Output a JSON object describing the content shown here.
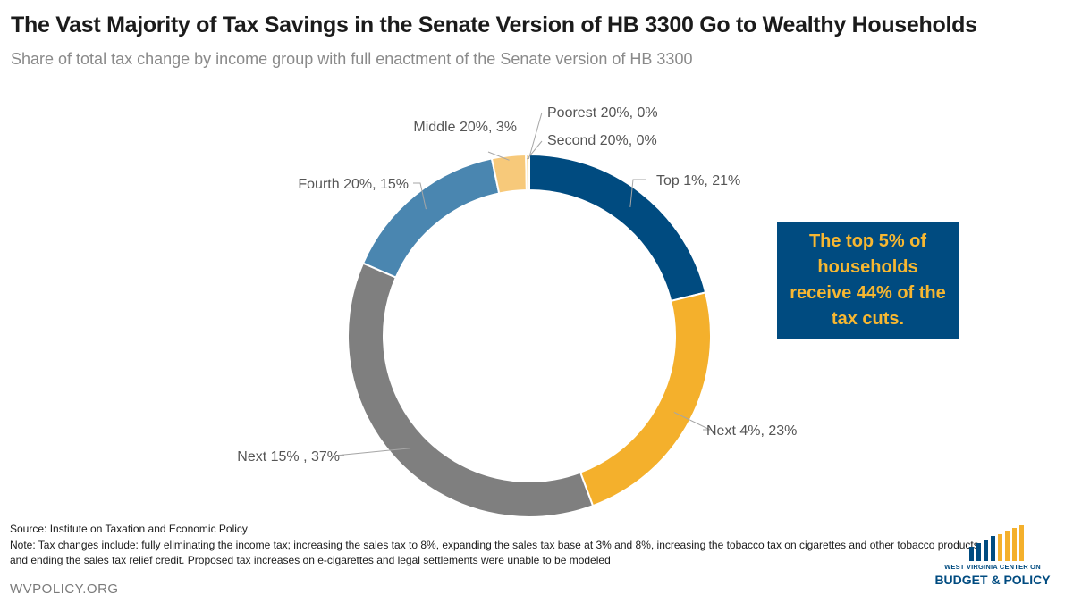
{
  "title": "The Vast Majority of Tax Savings in the Senate Version of HB 3300 Go to Wealthy Households",
  "subtitle": "Share of total tax change by income group with full enactment of the Senate version of HB 3300",
  "chart_data": {
    "type": "pie",
    "style": "donut",
    "slices": [
      {
        "label": "Top 1%, 21%",
        "value": 21,
        "color": "#004b80"
      },
      {
        "label": "Next 4%, 23%",
        "value": 23,
        "color": "#f4b02c"
      },
      {
        "label": "Next 15% , 37%",
        "value": 37,
        "color": "#7f7f7f"
      },
      {
        "label": "Fourth 20%, 15%",
        "value": 15,
        "color": "#4a86b0"
      },
      {
        "label": "Middle 20%, 3%",
        "value": 3,
        "color": "#f7c97a"
      },
      {
        "label": "Second 20%, 0%",
        "value": 0.2,
        "color": "#f4b02c"
      },
      {
        "label": "Poorest 20%, 0%",
        "value": 0.1,
        "color": "#004b80"
      }
    ],
    "legend": "none"
  },
  "callout": "The top 5% of households receive 44% of the tax cuts.",
  "source": "Source: Institute on Taxation and Economic Policy",
  "note": "Note: Tax changes include: fully eliminating the income tax; increasing the sales tax to 8%, expanding the sales tax base at 3% and 8%, increasing the tobacco tax on cigarettes and other tobacco products, and ending the sales tax relief credit. Proposed tax increases on e-cigarettes and legal settlements were unable to be modeled",
  "footer": {
    "site": "WVPOLICY.ORG",
    "logo_top": "WEST VIRGINIA CENTER ON",
    "logo_bottom": "BUDGET & POLICY"
  }
}
